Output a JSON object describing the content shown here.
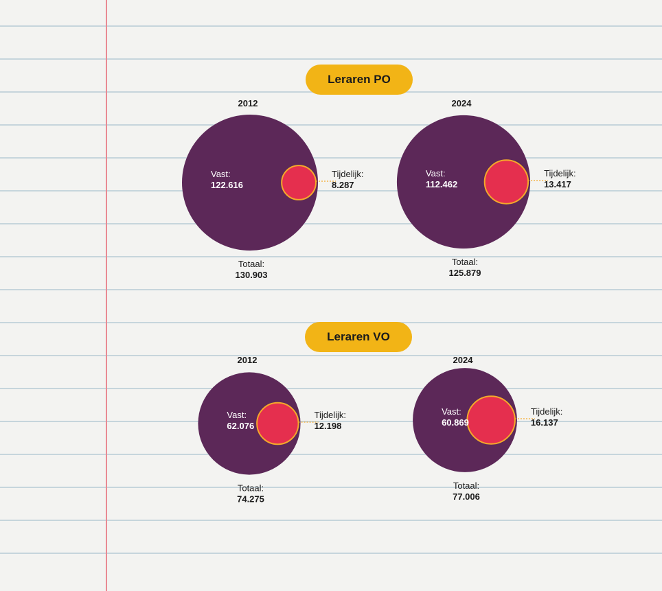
{
  "colors": {
    "background": "#f3f3f1",
    "ruled_line": "#c6d5dc",
    "margin_line": "#e98a93",
    "pill": "#f2b416",
    "vast_circle": "#5c2858",
    "tijdelijk_circle": "#e52f4e",
    "tijdelijk_outline": "#f4a92a"
  },
  "chart_data": [
    {
      "type": "bubble",
      "title": "Leraren PO",
      "groups": [
        {
          "year": "2012",
          "vast_label": "Vast:",
          "vast": "122.616",
          "tijdelijk_label": "Tijdelijk:",
          "tijdelijk": "8.287",
          "totaal_label": "Totaal:",
          "totaal": "130.903"
        },
        {
          "year": "2024",
          "vast_label": "Vast:",
          "vast": "112.462",
          "tijdelijk_label": "Tijdelijk:",
          "tijdelijk": "13.417",
          "totaal_label": "Totaal:",
          "totaal": "125.879"
        }
      ]
    },
    {
      "type": "bubble",
      "title": "Leraren VO",
      "groups": [
        {
          "year": "2012",
          "vast_label": "Vast:",
          "vast": "62.076",
          "tijdelijk_label": "Tijdelijk:",
          "tijdelijk": "12.198",
          "totaal_label": "Totaal:",
          "totaal": "74.275"
        },
        {
          "year": "2024",
          "vast_label": "Vast:",
          "vast": "60.869",
          "tijdelijk_label": "Tijdelijk:",
          "tijdelijk": "16.137",
          "totaal_label": "Totaal:",
          "totaal": "77.006"
        }
      ]
    }
  ]
}
